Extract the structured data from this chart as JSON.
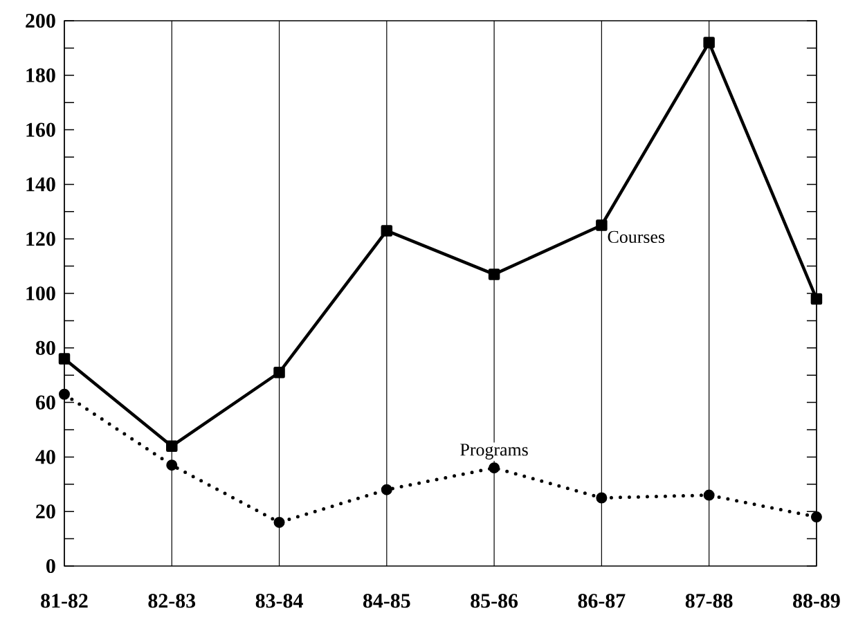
{
  "chart_data": {
    "type": "line",
    "categories": [
      "81-82",
      "82-83",
      "83-84",
      "84-85",
      "85-86",
      "86-87",
      "87-88",
      "88-89"
    ],
    "series": [
      {
        "name": "Courses",
        "color": "#000000",
        "marker": "square",
        "line_style": "solid",
        "values": [
          76,
          44,
          71,
          123,
          107,
          125,
          192,
          98
        ]
      },
      {
        "name": "Programs",
        "color": "#000000",
        "marker": "circle",
        "line_style": "dotted",
        "values": [
          63,
          37,
          16,
          28,
          36,
          25,
          26,
          18
        ]
      }
    ],
    "ylim": [
      0,
      200
    ],
    "yticks": [
      0,
      20,
      40,
      60,
      80,
      100,
      120,
      140,
      160,
      180,
      200
    ],
    "grid": "x"
  }
}
